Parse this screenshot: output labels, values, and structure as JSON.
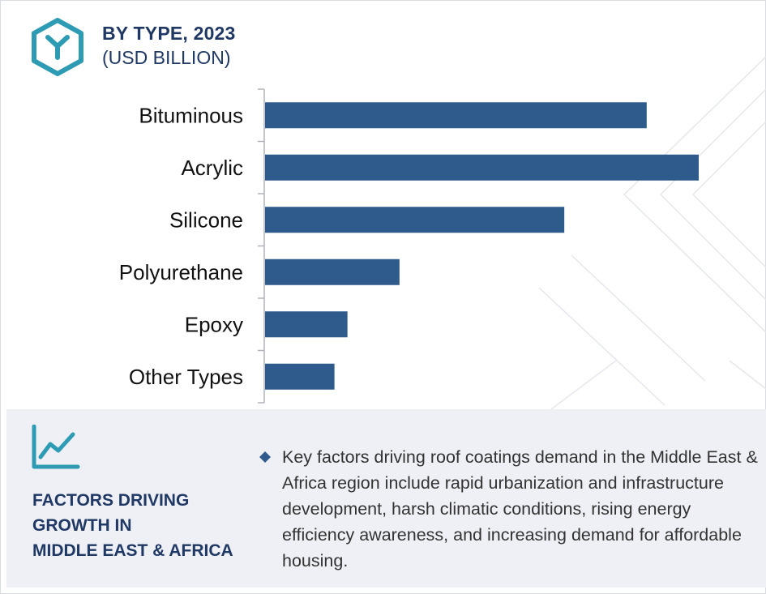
{
  "header": {
    "title": "BY TYPE, 2023",
    "subtitle": "(USD BILLION)"
  },
  "colors": {
    "bar": "#2e5b8c",
    "title": "#1f3864",
    "icon": "#2c9bb3",
    "panel_bg": "#eef0f5"
  },
  "icons": {
    "logo": "hexagon-y-logo-icon",
    "growth": "line-chart-growth-icon",
    "bullet": "diamond-bullet-icon"
  },
  "chart_data": {
    "type": "bar",
    "orientation": "horizontal",
    "categories": [
      "Bituminous",
      "Acrylic",
      "Silicone",
      "Polyurethane",
      "Epoxy",
      "Other Types"
    ],
    "values": [
      0.88,
      1.0,
      0.69,
      0.31,
      0.19,
      0.16
    ],
    "value_scale": "relative (axis unlabeled)",
    "xlim": [
      0,
      1.0
    ],
    "grid": false,
    "legend": "none"
  },
  "panel": {
    "heading_lines": [
      "FACTORS DRIVING",
      "GROWTH IN",
      "MIDDLE EAST & AFRICA"
    ],
    "text": "Key factors driving roof coatings demand in the Middle East & Africa region include rapid urbanization and infrastructure development, harsh climatic conditions, rising energy efficiency awareness, and increasing demand for affordable housing."
  }
}
